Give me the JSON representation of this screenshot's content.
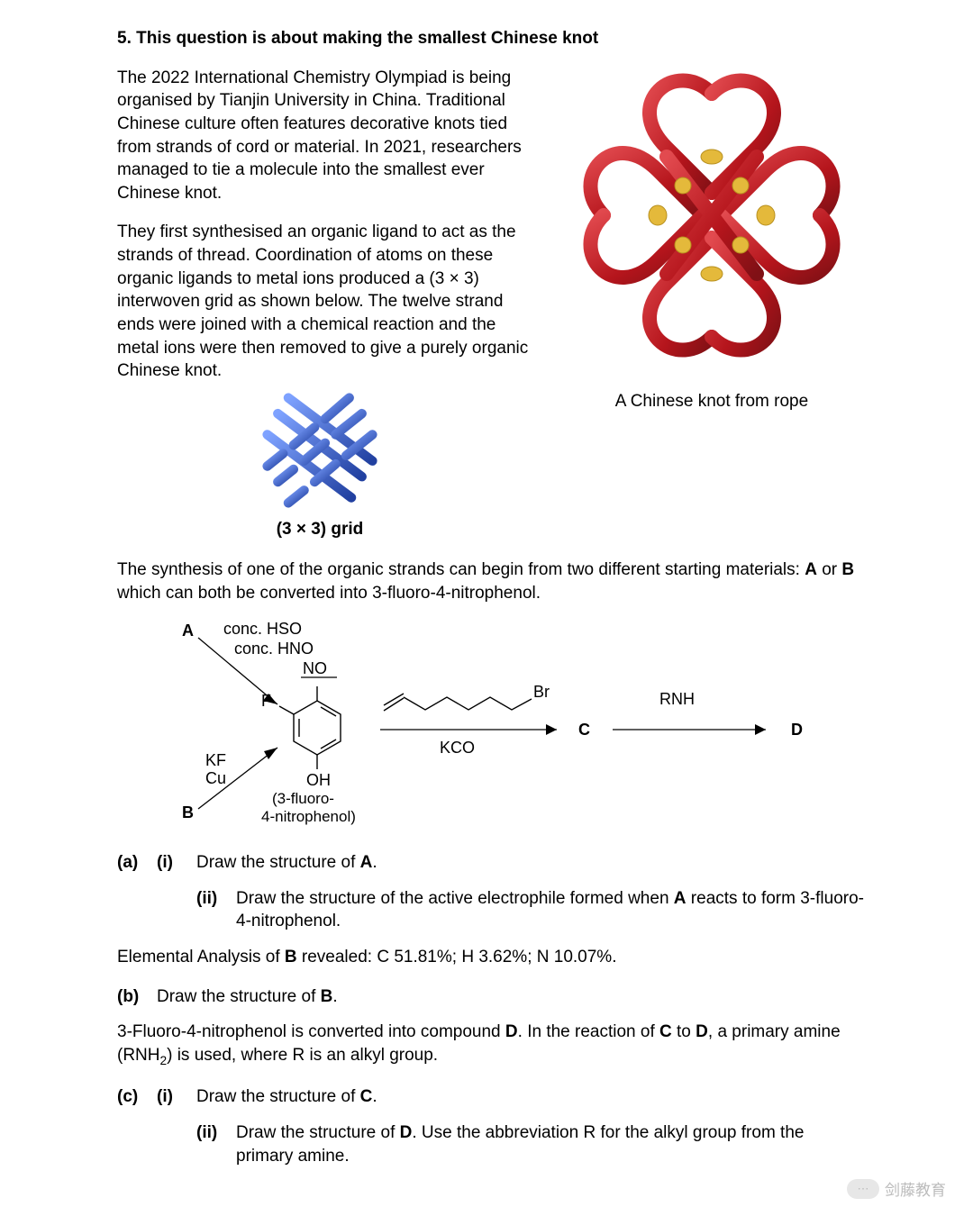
{
  "title_parts": [
    "5. This question is about making the smallest Chinese knot"
  ],
  "para1": "The 2022 International Chemistry Olympiad is being organised by Tianjin University in China. Traditional Chinese culture often features decorative knots tied from strands of cord or material. In 2021, researchers managed to tie a molecule into the smallest ever Chinese knot.",
  "para2": "They first synthesised an organic ligand to act as the strands of thread. Coordination of atoms on these organic ligands to metal ions produced a (3 × 3) interwoven grid as shown below. The twelve strand ends were joined with a chemical reaction and the metal ions were then removed to give a purely organic Chinese knot.",
  "grid_label": "(3 × 3) grid",
  "knot_caption": "A Chinese knot from rope",
  "para3_prefix": "The synthesis of one of the organic strands can begin from two different starting materials: ",
  "para3_bold_A": "A",
  "para3_middle": " or ",
  "para3_bold_B": "B",
  "para3_suffix": " which can both be converted into 3-fluoro-4-nitrophenol.",
  "scheme": {
    "A": "A",
    "B": "B",
    "C": "C",
    "D": "D",
    "reagents_top1_html": "conc. H<sub>2</sub>SO<sub>4</sub>",
    "reagents_top2_html": "conc. HNO<sub>3</sub>",
    "reagents_bottom1": "KF",
    "reagents_bottom2": "Cu",
    "NO2_html": "NO<sub>2</sub>",
    "F": "F",
    "OH": "OH",
    "product_name1": "(3-fluoro-",
    "product_name2": "4-nitrophenol)",
    "Br": "Br",
    "K2CO3_html": "K<sub>2</sub>CO<sub>3</sub>",
    "RNH2_html": "R<span style='font-size:0.6em;position:relative;top:-2px;'>╱</span>NH<sub>2</sub>"
  },
  "q_a_label": "(a)",
  "q_b_label": "(b)",
  "q_c_label": "(c)",
  "q_i_label": "(i)",
  "q_ii_label": "(ii)",
  "a_i_text_prefix": "Draw the structure of ",
  "a_i_text_bold": "A",
  "a_i_text_suffix": ".",
  "a_ii_text_prefix": "Draw the structure of the active electrophile formed when ",
  "a_ii_text_bold": "A",
  "a_ii_text_suffix": " reacts to form 3-fluoro-4-nitrophenol.",
  "elemental_prefix": "Elemental Analysis of ",
  "elemental_bold": "B",
  "elemental_suffix": " revealed: C 51.81%; H 3.62%; N 10.07%.",
  "b_text_prefix": "Draw the structure of ",
  "b_text_bold": "B",
  "b_text_suffix": ".",
  "para_cd_prefix": "3-Fluoro-4-nitrophenol is converted into compound ",
  "para_cd_bold1": "D",
  "para_cd_mid1": ". In the reaction of ",
  "para_cd_bold2": "C",
  "para_cd_mid2": " to ",
  "para_cd_bold3": "D",
  "para_cd_mid3_html": ", a primary amine (RNH<sub>2</sub>) is used, where R is an alkyl group.",
  "c_i_text_prefix": "Draw the structure of ",
  "c_i_text_bold": "C",
  "c_i_text_suffix": ".",
  "c_ii_text_prefix": "Draw the structure of ",
  "c_ii_text_bold": "D",
  "c_ii_text_suffix": ". Use the abbreviation R for the alkyl group from the primary amine.",
  "watermark_text": "剑藤教育",
  "watermark_badge": "⋯",
  "colors": {
    "rope_red": "#c51e24",
    "rope_gold": "#e4b93b",
    "grid_blue": "#2a4fb4",
    "grid_blue_light": "#5f82e0"
  }
}
